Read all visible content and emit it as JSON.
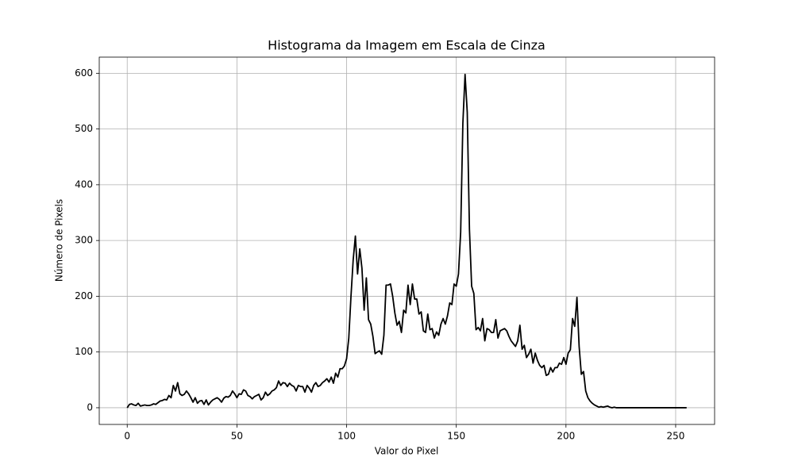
{
  "chart_data": {
    "type": "line",
    "title": "Histograma da Imagem em Escala de Cinza",
    "xlabel": "Valor do Pixel",
    "ylabel": "Número de Pixels",
    "color": "#000000",
    "grid": true,
    "xlim": [
      -12.75,
      267.75
    ],
    "ylim": [
      -29.95,
      628.95
    ],
    "xticks": [
      0,
      50,
      100,
      150,
      200,
      250
    ],
    "yticks": [
      0,
      100,
      200,
      300,
      400,
      500,
      600
    ],
    "x": [
      0,
      1,
      2,
      3,
      4,
      5,
      6,
      7,
      8,
      9,
      10,
      11,
      12,
      13,
      14,
      15,
      16,
      17,
      18,
      19,
      20,
      21,
      22,
      23,
      24,
      25,
      26,
      27,
      28,
      29,
      30,
      31,
      32,
      33,
      34,
      35,
      36,
      37,
      38,
      39,
      40,
      41,
      42,
      43,
      44,
      45,
      46,
      47,
      48,
      49,
      50,
      51,
      52,
      53,
      54,
      55,
      56,
      57,
      58,
      59,
      60,
      61,
      62,
      63,
      64,
      65,
      66,
      67,
      68,
      69,
      70,
      71,
      72,
      73,
      74,
      75,
      76,
      77,
      78,
      79,
      80,
      81,
      82,
      83,
      84,
      85,
      86,
      87,
      88,
      89,
      90,
      91,
      92,
      93,
      94,
      95,
      96,
      97,
      98,
      99,
      100,
      101,
      102,
      103,
      104,
      105,
      106,
      107,
      108,
      109,
      110,
      111,
      112,
      113,
      114,
      115,
      116,
      117,
      118,
      119,
      120,
      121,
      122,
      123,
      124,
      125,
      126,
      127,
      128,
      129,
      130,
      131,
      132,
      133,
      134,
      135,
      136,
      137,
      138,
      139,
      140,
      141,
      142,
      143,
      144,
      145,
      146,
      147,
      148,
      149,
      150,
      151,
      152,
      153,
      154,
      155,
      156,
      157,
      158,
      159,
      160,
      161,
      162,
      163,
      164,
      165,
      166,
      167,
      168,
      169,
      170,
      171,
      172,
      173,
      174,
      175,
      176,
      177,
      178,
      179,
      180,
      181,
      182,
      183,
      184,
      185,
      186,
      187,
      188,
      189,
      190,
      191,
      192,
      193,
      194,
      195,
      196,
      197,
      198,
      199,
      200,
      201,
      202,
      203,
      204,
      205,
      206,
      207,
      208,
      209,
      210,
      211,
      212,
      213,
      214,
      215,
      216,
      217,
      218,
      219,
      220,
      221,
      222,
      223,
      224,
      225,
      226,
      227,
      228,
      229,
      230,
      231,
      232,
      233,
      234,
      235,
      236,
      237,
      238,
      239,
      240,
      241,
      242,
      243,
      244,
      245,
      246,
      247,
      248,
      249,
      250,
      251,
      252,
      253,
      254,
      255
    ],
    "values": [
      0,
      6,
      7,
      5,
      4,
      8,
      3,
      4,
      5,
      4,
      4,
      5,
      7,
      6,
      9,
      12,
      13,
      15,
      14,
      22,
      18,
      40,
      30,
      45,
      25,
      22,
      24,
      30,
      25,
      18,
      10,
      18,
      8,
      12,
      13,
      6,
      14,
      5,
      10,
      14,
      16,
      18,
      15,
      10,
      17,
      20,
      19,
      22,
      30,
      25,
      18,
      25,
      24,
      32,
      30,
      22,
      20,
      16,
      20,
      22,
      24,
      14,
      18,
      28,
      22,
      25,
      30,
      32,
      36,
      48,
      40,
      45,
      44,
      38,
      44,
      40,
      38,
      30,
      40,
      38,
      38,
      28,
      40,
      35,
      28,
      40,
      45,
      38,
      40,
      45,
      48,
      52,
      46,
      55,
      44,
      62,
      55,
      70,
      70,
      75,
      88,
      125,
      200,
      265,
      308,
      240,
      285,
      250,
      175,
      233,
      158,
      150,
      128,
      97,
      100,
      102,
      96,
      130,
      220,
      220,
      222,
      200,
      170,
      148,
      155,
      135,
      175,
      170,
      220,
      185,
      222,
      195,
      195,
      168,
      172,
      138,
      135,
      168,
      140,
      142,
      125,
      136,
      130,
      150,
      160,
      150,
      165,
      188,
      185,
      222,
      218,
      240,
      315,
      510,
      598,
      530,
      320,
      218,
      205,
      140,
      144,
      138,
      160,
      120,
      142,
      140,
      135,
      135,
      158,
      125,
      138,
      140,
      142,
      138,
      128,
      120,
      115,
      110,
      120,
      148,
      105,
      112,
      90,
      96,
      105,
      80,
      98,
      85,
      76,
      72,
      76,
      58,
      60,
      72,
      64,
      72,
      72,
      80,
      78,
      90,
      78,
      98,
      104,
      160,
      146,
      198,
      110,
      60,
      65,
      30,
      18,
      12,
      8,
      5,
      3,
      1,
      2,
      1,
      2,
      3,
      1,
      0,
      1,
      0,
      0,
      0,
      0,
      0,
      0,
      0,
      0,
      0,
      0,
      0,
      0,
      0,
      0,
      0,
      0,
      0,
      0,
      0,
      0,
      0,
      0,
      0,
      0,
      0,
      0,
      0,
      0,
      0,
      0,
      0,
      0,
      0
    ]
  }
}
